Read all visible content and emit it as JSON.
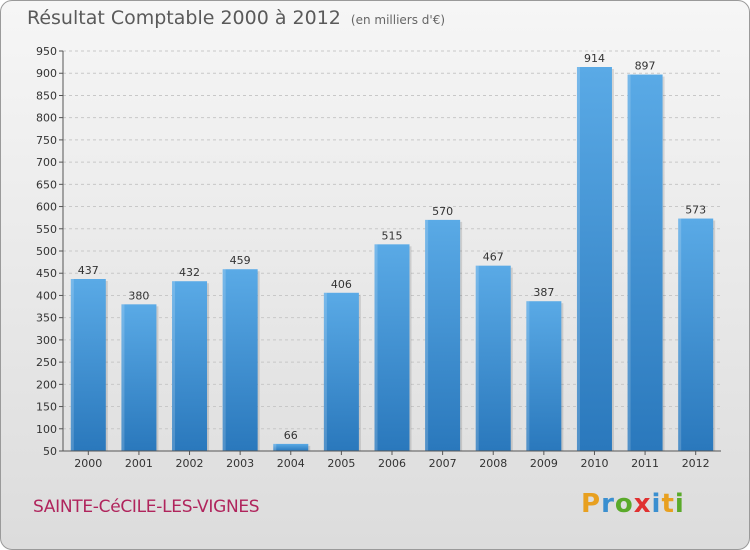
{
  "header": {
    "title": "Résultat Comptable 2000 à 2012",
    "subtitle": "(en milliers d'€)"
  },
  "footer": {
    "commune": "SAINTE-CéCILE-LES-VIGNES",
    "logo": [
      "P",
      "r",
      "o",
      "x",
      "i",
      "t",
      "i"
    ],
    "logo_colors": [
      "#e8a020",
      "#3a8fd0",
      "#5aaa2a",
      "#e03030",
      "#3a8fd0",
      "#e8a020",
      "#5aaa2a"
    ]
  },
  "chart_data": {
    "type": "bar",
    "title": "Résultat Comptable 2000 à 2012",
    "subtitle": "(en milliers d'€)",
    "categories": [
      "2000",
      "2001",
      "2002",
      "2003",
      "2004",
      "2005",
      "2006",
      "2007",
      "2008",
      "2009",
      "2010",
      "2011",
      "2012"
    ],
    "values": [
      437,
      380,
      432,
      459,
      66,
      406,
      515,
      570,
      467,
      387,
      914,
      897,
      573
    ],
    "ylim": [
      50,
      950
    ],
    "yticks": [
      50,
      100,
      150,
      200,
      250,
      300,
      350,
      400,
      450,
      500,
      550,
      600,
      650,
      700,
      750,
      800,
      850,
      900,
      950
    ],
    "grid": true,
    "bar_color_top": "#5aaae6",
    "bar_color_bottom": "#2a78bc",
    "data_labels": true
  }
}
